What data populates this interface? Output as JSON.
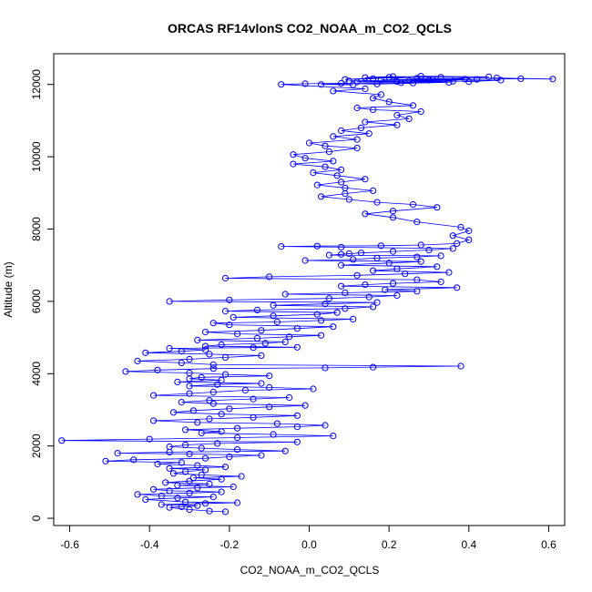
{
  "chart_data": {
    "type": "scatter",
    "title": "ORCAS RF14vlonS CO2_NOAA_m_CO2_QCLS",
    "xlabel": "CO2_NOAA_m_CO2_QCLS",
    "ylabel": "Altitude (m)",
    "xlim": [
      -0.64,
      0.64
    ],
    "ylim": [
      -200,
      12850
    ],
    "x_ticks": [
      -0.6,
      -0.4,
      -0.2,
      0.0,
      0.2,
      0.4,
      0.6
    ],
    "x_tick_labels": [
      "-0.6",
      "-0.4",
      "-0.2",
      "0.0",
      "0.2",
      "0.4",
      "0.6"
    ],
    "y_ticks": [
      0,
      2000,
      4000,
      6000,
      8000,
      10000,
      12000
    ],
    "y_tick_labels": [
      "0",
      "2000",
      "4000",
      "6000",
      "8000",
      "10000",
      "12000"
    ],
    "series_color": "#0000ff",
    "grid": false,
    "points": [
      [
        -0.21,
        180
      ],
      [
        -0.25,
        200
      ],
      [
        -0.3,
        240
      ],
      [
        -0.35,
        300
      ],
      [
        -0.32,
        320
      ],
      [
        -0.28,
        350
      ],
      [
        -0.37,
        380
      ],
      [
        -0.26,
        410
      ],
      [
        -0.18,
        430
      ],
      [
        -0.31,
        450
      ],
      [
        -0.41,
        520
      ],
      [
        -0.33,
        560
      ],
      [
        -0.24,
        590
      ],
      [
        -0.37,
        620
      ],
      [
        -0.43,
        660
      ],
      [
        -0.3,
        700
      ],
      [
        -0.22,
        730
      ],
      [
        -0.35,
        760
      ],
      [
        -0.39,
        800
      ],
      [
        -0.28,
        840
      ],
      [
        -0.19,
        870
      ],
      [
        -0.33,
        910
      ],
      [
        -0.25,
        950
      ],
      [
        -0.36,
        990
      ],
      [
        -0.3,
        1030
      ],
      [
        -0.22,
        1080
      ],
      [
        -0.29,
        1120
      ],
      [
        -0.17,
        1160
      ],
      [
        -0.27,
        1200
      ],
      [
        -0.34,
        1240
      ],
      [
        -0.31,
        1290
      ],
      [
        -0.26,
        1340
      ],
      [
        -0.35,
        1380
      ],
      [
        -0.21,
        1420
      ],
      [
        -0.28,
        1460
      ],
      [
        -0.38,
        1500
      ],
      [
        -0.32,
        1540
      ],
      [
        -0.51,
        1580
      ],
      [
        -0.44,
        1620
      ],
      [
        -0.26,
        1660
      ],
      [
        -0.2,
        1700
      ],
      [
        -0.12,
        1740
      ],
      [
        -0.3,
        1780
      ],
      [
        -0.48,
        1800
      ],
      [
        -0.35,
        1830
      ],
      [
        -0.06,
        1860
      ],
      [
        -0.18,
        1900
      ],
      [
        -0.27,
        1940
      ],
      [
        -0.35,
        1980
      ],
      [
        -0.31,
        2030
      ],
      [
        -0.23,
        2070
      ],
      [
        -0.03,
        2110
      ],
      [
        -0.62,
        2150
      ],
      [
        -0.4,
        2190
      ],
      [
        -0.18,
        2230
      ],
      [
        0.06,
        2280
      ],
      [
        -0.09,
        2320
      ],
      [
        -0.27,
        2360
      ],
      [
        -0.22,
        2400
      ],
      [
        -0.31,
        2450
      ],
      [
        -0.18,
        2490
      ],
      [
        -0.03,
        2530
      ],
      [
        0.04,
        2570
      ],
      [
        -0.08,
        2620
      ],
      [
        -0.28,
        2650
      ],
      [
        -0.39,
        2700
      ],
      [
        -0.25,
        2750
      ],
      [
        -0.14,
        2790
      ],
      [
        -0.03,
        2840
      ],
      [
        -0.22,
        2880
      ],
      [
        -0.34,
        2930
      ],
      [
        -0.29,
        2980
      ],
      [
        -0.2,
        3030
      ],
      [
        -0.1,
        3080
      ],
      [
        -0.01,
        3120
      ],
      [
        -0.24,
        3170
      ],
      [
        -0.32,
        3210
      ],
      [
        -0.25,
        3260
      ],
      [
        -0.14,
        3300
      ],
      [
        -0.05,
        3340
      ],
      [
        -0.39,
        3400
      ],
      [
        -0.3,
        3450
      ],
      [
        -0.24,
        3490
      ],
      [
        -0.16,
        3540
      ],
      [
        0.01,
        3580
      ],
      [
        -0.1,
        3620
      ],
      [
        -0.3,
        3660
      ],
      [
        -0.23,
        3700
      ],
      [
        -0.12,
        3730
      ],
      [
        -0.33,
        3770
      ],
      [
        -0.22,
        3820
      ],
      [
        -0.3,
        3860
      ],
      [
        -0.27,
        3900
      ],
      [
        -0.1,
        3940
      ],
      [
        -0.21,
        3980
      ],
      [
        -0.3,
        4020
      ],
      [
        -0.46,
        4060
      ],
      [
        -0.38,
        4100
      ],
      [
        -0.24,
        4140
      ],
      [
        0.04,
        4160
      ],
      [
        0.16,
        4180
      ],
      [
        0.38,
        4210
      ],
      [
        -0.24,
        4250
      ],
      [
        -0.32,
        4300
      ],
      [
        -0.43,
        4350
      ],
      [
        -0.3,
        4400
      ],
      [
        -0.21,
        4450
      ],
      [
        -0.12,
        4500
      ],
      [
        -0.25,
        4540
      ],
      [
        -0.41,
        4580
      ],
      [
        -0.32,
        4620
      ],
      [
        -0.26,
        4660
      ],
      [
        -0.35,
        4700
      ],
      [
        -0.14,
        4720
      ],
      [
        -0.03,
        4730
      ],
      [
        -0.26,
        4760
      ],
      [
        -0.22,
        4800
      ],
      [
        -0.11,
        4840
      ],
      [
        -0.06,
        4880
      ],
      [
        -0.28,
        4930
      ],
      [
        -0.13,
        4980
      ],
      [
        -0.05,
        5020
      ],
      [
        0.03,
        5060
      ],
      [
        -0.18,
        5100
      ],
      [
        -0.26,
        5150
      ],
      [
        -0.12,
        5200
      ],
      [
        -0.03,
        5250
      ],
      [
        0.06,
        5300
      ],
      [
        -0.2,
        5350
      ],
      [
        -0.24,
        5400
      ],
      [
        -0.08,
        5430
      ],
      [
        0.03,
        5470
      ],
      [
        0.11,
        5510
      ],
      [
        -0.19,
        5560
      ],
      [
        -0.09,
        5600
      ],
      [
        0.02,
        5640
      ],
      [
        0.07,
        5690
      ],
      [
        -0.21,
        5730
      ],
      [
        -0.13,
        5760
      ],
      [
        0.09,
        5800
      ],
      [
        0.16,
        5850
      ],
      [
        -0.09,
        5890
      ],
      [
        0.04,
        5930
      ],
      [
        0.17,
        5970
      ],
      [
        -0.35,
        6000
      ],
      [
        -0.2,
        6040
      ],
      [
        0.05,
        6080
      ],
      [
        0.15,
        6120
      ],
      [
        0.22,
        6160
      ],
      [
        -0.06,
        6200
      ],
      [
        0.09,
        6240
      ],
      [
        0.27,
        6280
      ],
      [
        0.19,
        6320
      ],
      [
        0.37,
        6380
      ],
      [
        0.08,
        6420
      ],
      [
        0.14,
        6460
      ],
      [
        0.21,
        6500
      ],
      [
        0.33,
        6540
      ],
      [
        0.27,
        6600
      ],
      [
        -0.21,
        6640
      ],
      [
        -0.1,
        6680
      ],
      [
        0.12,
        6720
      ],
      [
        0.24,
        6760
      ],
      [
        0.35,
        6800
      ],
      [
        0.16,
        6850
      ],
      [
        0.22,
        6900
      ],
      [
        0.32,
        6960
      ],
      [
        0.08,
        7000
      ],
      [
        0.2,
        7060
      ],
      [
        0.28,
        7100
      ],
      [
        -0.01,
        7130
      ],
      [
        0.11,
        7160
      ],
      [
        0.17,
        7200
      ],
      [
        0.27,
        7230
      ],
      [
        0.33,
        7260
      ],
      [
        0.05,
        7280
      ],
      [
        0.08,
        7300
      ],
      [
        0.1,
        7320
      ],
      [
        0.13,
        7340
      ],
      [
        0.21,
        7380
      ],
      [
        0.3,
        7420
      ],
      [
        0.36,
        7460
      ],
      [
        0.08,
        7500
      ],
      [
        -0.07,
        7520
      ],
      [
        0.02,
        7530
      ],
      [
        0.18,
        7540
      ],
      [
        0.28,
        7560
      ],
      [
        0.37,
        7600
      ],
      [
        0.4,
        7700
      ],
      [
        0.36,
        7820
      ],
      [
        0.4,
        7950
      ],
      [
        0.38,
        8050
      ],
      [
        0.27,
        8200
      ],
      [
        0.21,
        8320
      ],
      [
        0.14,
        8420
      ],
      [
        0.21,
        8500
      ],
      [
        0.32,
        8600
      ],
      [
        0.26,
        8680
      ],
      [
        0.17,
        8740
      ],
      [
        0.1,
        8820
      ],
      [
        0.03,
        8900
      ],
      [
        0.09,
        8980
      ],
      [
        0.16,
        9060
      ],
      [
        0.09,
        9140
      ],
      [
        0.02,
        9220
      ],
      [
        0.08,
        9300
      ],
      [
        0.14,
        9380
      ],
      [
        0.07,
        9480
      ],
      [
        0.01,
        9560
      ],
      [
        0.08,
        9640
      ],
      [
        0.04,
        9720
      ],
      [
        -0.04,
        9800
      ],
      [
        0.06,
        9880
      ],
      [
        -0.01,
        9960
      ],
      [
        -0.04,
        10060
      ],
      [
        0.05,
        10140
      ],
      [
        0.12,
        10240
      ],
      [
        0.04,
        10300
      ],
      [
        0.0,
        10380
      ],
      [
        0.12,
        10480
      ],
      [
        0.06,
        10560
      ],
      [
        0.15,
        10640
      ],
      [
        0.08,
        10720
      ],
      [
        0.13,
        10800
      ],
      [
        0.22,
        10880
      ],
      [
        0.14,
        10960
      ],
      [
        0.25,
        11050
      ],
      [
        0.22,
        11150
      ],
      [
        0.28,
        11250
      ],
      [
        0.16,
        11300
      ],
      [
        0.12,
        11350
      ],
      [
        0.26,
        11420
      ],
      [
        0.2,
        11520
      ],
      [
        0.16,
        11620
      ],
      [
        0.18,
        11720
      ],
      [
        0.06,
        11820
      ],
      [
        0.14,
        11880
      ],
      [
        -0.07,
        12000
      ],
      [
        -0.01,
        12020
      ],
      [
        0.08,
        12030
      ],
      [
        0.17,
        12010
      ],
      [
        0.26,
        12040
      ],
      [
        0.35,
        12060
      ],
      [
        0.22,
        12080
      ],
      [
        0.1,
        12100
      ],
      [
        0.3,
        12120
      ],
      [
        0.42,
        12140
      ],
      [
        0.53,
        12160
      ],
      [
        0.61,
        12150
      ],
      [
        0.47,
        12180
      ],
      [
        0.33,
        12200
      ],
      [
        0.21,
        12220
      ],
      [
        0.14,
        12190
      ],
      [
        0.27,
        12170
      ],
      [
        0.39,
        12150
      ],
      [
        0.18,
        12130
      ],
      [
        0.25,
        12110
      ],
      [
        0.36,
        12090
      ],
      [
        0.12,
        12070
      ],
      [
        0.23,
        12050
      ],
      [
        0.31,
        12130
      ],
      [
        0.45,
        12210
      ],
      [
        0.28,
        12230
      ],
      [
        0.16,
        12160
      ],
      [
        0.09,
        12140
      ],
      [
        0.2,
        12200
      ],
      [
        0.4,
        12080
      ],
      [
        0.48,
        12120
      ],
      [
        0.03,
        12000
      ],
      [
        0.11,
        11990
      ]
    ]
  }
}
